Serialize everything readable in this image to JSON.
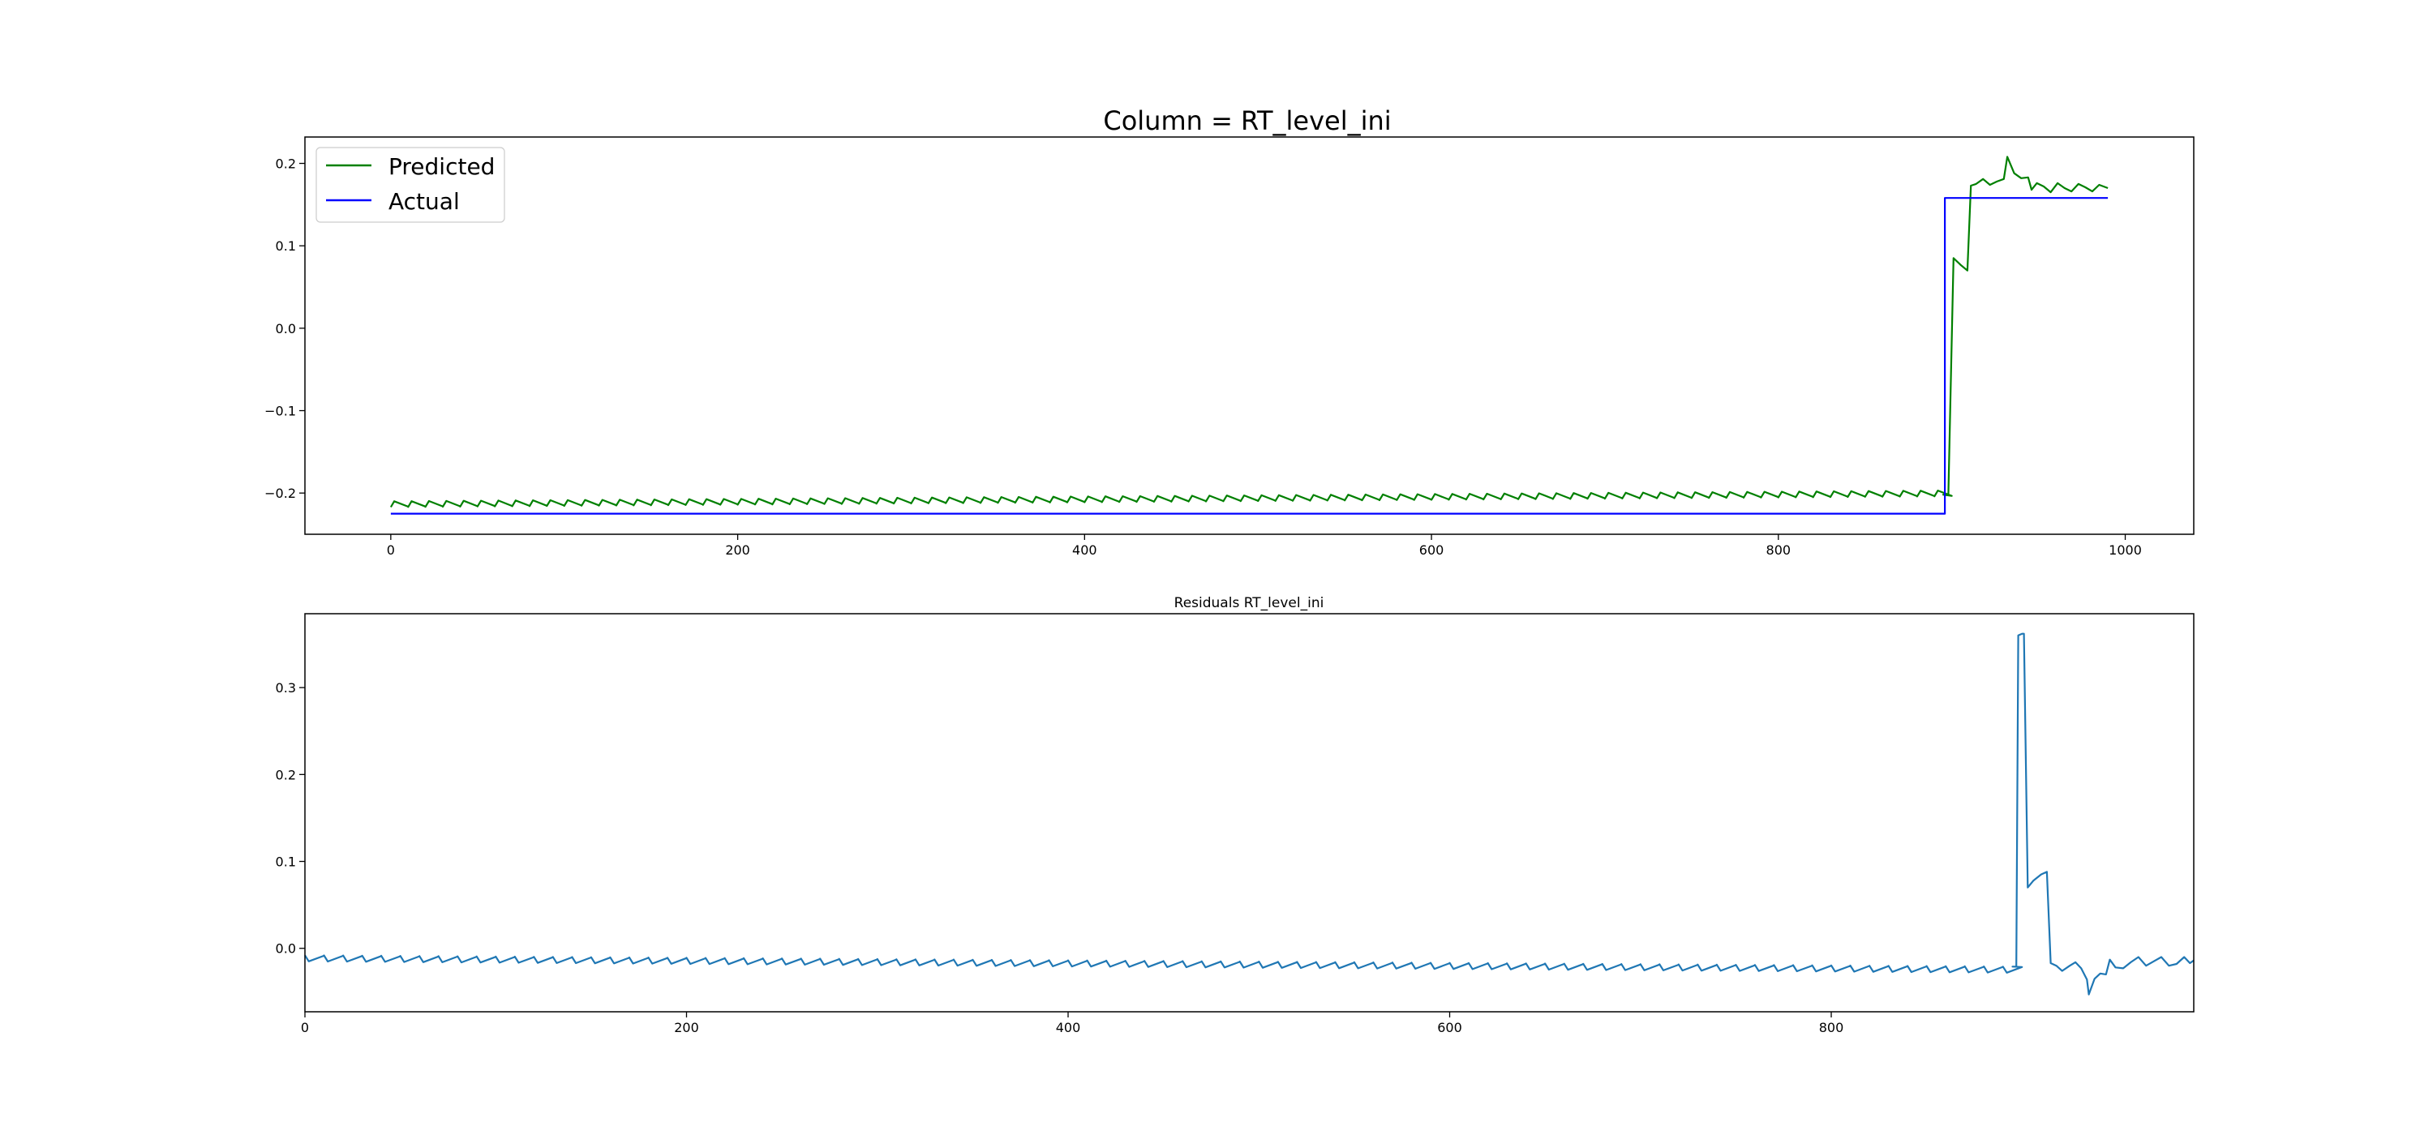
{
  "chart_data": [
    {
      "type": "line",
      "title": "Column = RT_level_ini",
      "xlabel": "",
      "ylabel": "",
      "xlim": [
        -49.5,
        1039.5
      ],
      "ylim": [
        -0.25,
        0.232
      ],
      "x_ticks": [
        0,
        200,
        400,
        600,
        800,
        1000
      ],
      "y_ticks": [
        -0.2,
        -0.1,
        0.0,
        0.1,
        0.2
      ],
      "x_tick_labels": [
        "0",
        "200",
        "400",
        "600",
        "800",
        "1000"
      ],
      "y_tick_labels": [
        "−0.2",
        "−0.1",
        "0.0",
        "0.1",
        "0.2"
      ],
      "grid": false,
      "legend_position": "top-left",
      "series": [
        {
          "name": "Predicted",
          "color": "#008000",
          "pattern": {
            "type": "sawtooth",
            "x_start": 0,
            "x_end": 895,
            "period": 10,
            "low_start": -0.217,
            "low_end": -0.204,
            "amplitude": 0.007
          },
          "points": [
            [
              895,
              -0.202
            ],
            [
              898,
              -0.202
            ],
            [
              901,
              0.085
            ],
            [
              905,
              0.077
            ],
            [
              909,
              0.07
            ],
            [
              911,
              0.173
            ],
            [
              914,
              0.175
            ],
            [
              918,
              0.181
            ],
            [
              922,
              0.174
            ],
            [
              926,
              0.178
            ],
            [
              930,
              0.181
            ],
            [
              932,
              0.208
            ],
            [
              936,
              0.188
            ],
            [
              940,
              0.182
            ],
            [
              944,
              0.183
            ],
            [
              946,
              0.168
            ],
            [
              949,
              0.176
            ],
            [
              953,
              0.172
            ],
            [
              957,
              0.165
            ],
            [
              961,
              0.176
            ],
            [
              965,
              0.17
            ],
            [
              969,
              0.166
            ],
            [
              973,
              0.175
            ],
            [
              977,
              0.171
            ],
            [
              981,
              0.166
            ],
            [
              985,
              0.174
            ],
            [
              990,
              0.17
            ]
          ]
        },
        {
          "name": "Actual",
          "color": "#0000ff",
          "points": [
            [
              0,
              -0.225
            ],
            [
              896,
              -0.225
            ],
            [
              896,
              0.158
            ],
            [
              990,
              0.158
            ]
          ]
        }
      ]
    },
    {
      "type": "line",
      "title": "Residuals RT_level_ini",
      "xlabel": "",
      "ylabel": "",
      "xlim": [
        0,
        990
      ],
      "ylim": [
        -0.073,
        0.385
      ],
      "x_ticks": [
        0,
        200,
        400,
        600,
        800
      ],
      "y_ticks": [
        0.0,
        0.1,
        0.2,
        0.3
      ],
      "x_tick_labels": [
        "0",
        "200",
        "400",
        "600",
        "800"
      ],
      "y_tick_labels": [
        "0.0",
        "0.1",
        "0.2",
        "0.3"
      ],
      "grid": false,
      "series": [
        {
          "color": "#1f77b4",
          "pattern": {
            "type": "sawtooth",
            "x_start": 0,
            "x_end": 895,
            "period": 10,
            "high_start": -0.008,
            "high_end": -0.021,
            "amplitude": -0.007
          },
          "points": [
            [
              895,
              -0.021
            ],
            [
              897,
              -0.021
            ],
            [
              898,
              0.36
            ],
            [
              900,
              0.362
            ],
            [
              901,
              0.362
            ],
            [
              903,
              0.07
            ],
            [
              906,
              0.078
            ],
            [
              910,
              0.085
            ],
            [
              913,
              0.088
            ],
            [
              915,
              -0.017
            ],
            [
              918,
              -0.02
            ],
            [
              921,
              -0.026
            ],
            [
              925,
              -0.02
            ],
            [
              928,
              -0.016
            ],
            [
              931,
              -0.023
            ],
            [
              934,
              -0.036
            ],
            [
              935,
              -0.053
            ],
            [
              938,
              -0.035
            ],
            [
              941,
              -0.029
            ],
            [
              944,
              -0.03
            ],
            [
              946,
              -0.013
            ],
            [
              949,
              -0.022
            ],
            [
              953,
              -0.023
            ],
            [
              957,
              -0.016
            ],
            [
              961,
              -0.01
            ],
            [
              965,
              -0.02
            ],
            [
              969,
              -0.015
            ],
            [
              973,
              -0.01
            ],
            [
              977,
              -0.02
            ],
            [
              981,
              -0.018
            ],
            [
              985,
              -0.01
            ],
            [
              988,
              -0.017
            ],
            [
              990,
              -0.014
            ]
          ]
        }
      ]
    }
  ]
}
